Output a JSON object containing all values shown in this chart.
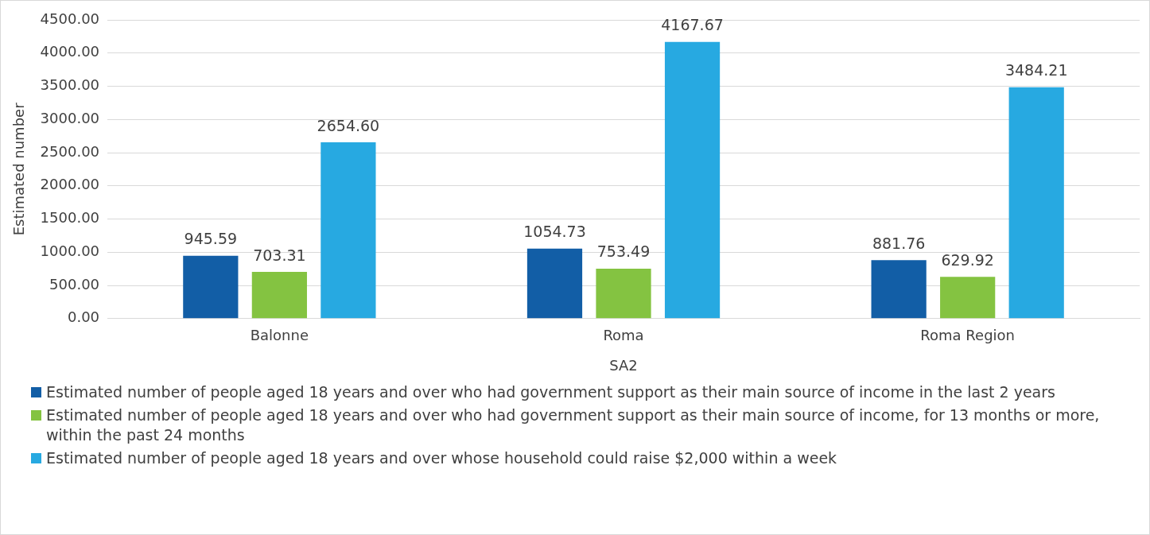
{
  "chart_data": {
    "type": "bar",
    "xlabel": "SA2",
    "ylabel": "Estimated number",
    "categories": [
      "Balonne",
      "Roma",
      "Roma Region"
    ],
    "series": [
      {
        "name": "Estimated number of people aged 18 years and over who had government support as their main source of income in the last 2 years",
        "color": "#125ea6",
        "values": [
          945.59,
          1054.73,
          881.76
        ],
        "value_labels": [
          "945.59",
          "1054.73",
          "881.76"
        ]
      },
      {
        "name": "Estimated number of people aged 18 years and over who had government support as their main source of income, for 13 months or more, within the past 24 months",
        "color": "#84c341",
        "values": [
          703.31,
          753.49,
          629.92
        ],
        "value_labels": [
          "703.31",
          "753.49",
          "629.92"
        ]
      },
      {
        "name": "Estimated number of people aged 18 years and over whose household could raise $2,000 within a week",
        "color": "#27a9e1",
        "values": [
          2654.6,
          4167.67,
          3484.21
        ],
        "value_labels": [
          "2654.60",
          "4167.67",
          "3484.21"
        ]
      }
    ],
    "ylim": [
      0,
      4500
    ],
    "yticks": [
      {
        "value": 0,
        "label": "0.00"
      },
      {
        "value": 500,
        "label": "500.00"
      },
      {
        "value": 1000,
        "label": "1000.00"
      },
      {
        "value": 1500,
        "label": "1500.00"
      },
      {
        "value": 2000,
        "label": "2000.00"
      },
      {
        "value": 2500,
        "label": "2500.00"
      },
      {
        "value": 3000,
        "label": "3000.00"
      },
      {
        "value": 3500,
        "label": "3500.00"
      },
      {
        "value": 4000,
        "label": "4000.00"
      },
      {
        "value": 4500,
        "label": "4500.00"
      }
    ],
    "grid": "y",
    "legend": "bottom"
  }
}
